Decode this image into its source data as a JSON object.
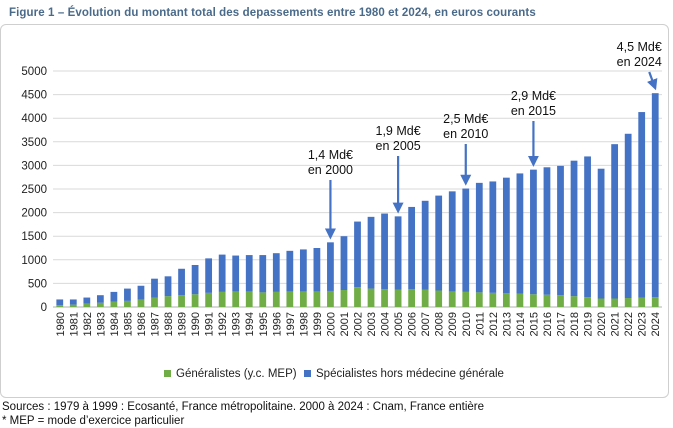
{
  "title": "Figure 1 – Évolution du montant total des depassements entre 1980 et 2024, en euros courants",
  "sources_line": "Sources : 1979 à 1999 : Ecosanté, France métropolitaine. 2000 à 2024 : Cnam, France entière",
  "note_line": "* MEP = mode d’exercice particulier",
  "chart_data": {
    "type": "bar",
    "stacked": true,
    "title": "Figure 1 – Évolution du montant total des depassements entre 1980 et 2024, en euros courants",
    "xlabel": "",
    "ylabel": "",
    "ylim": [
      0,
      5000
    ],
    "yticks": [
      0,
      500,
      1000,
      1500,
      2000,
      2500,
      3000,
      3500,
      4000,
      4500,
      5000
    ],
    "grid": true,
    "legend_position": "bottom",
    "categories": [
      "1980",
      "1981",
      "1982",
      "1983",
      "1984",
      "1985",
      "1986",
      "1987",
      "1988",
      "1989",
      "1990",
      "1991",
      "1992",
      "1993",
      "1994",
      "1995",
      "1996",
      "1997",
      "1998",
      "1999",
      "2000",
      "2001",
      "2002",
      "2003",
      "2004",
      "2005",
      "2006",
      "2007",
      "2008",
      "2009",
      "2010",
      "2011",
      "2012",
      "2013",
      "2014",
      "2015",
      "2016",
      "2017",
      "2018",
      "2019",
      "2020",
      "2021",
      "2022",
      "2023",
      "2024"
    ],
    "series": [
      {
        "name": "Généralistes (y.c. MEP)",
        "color": "#70ad47",
        "values": [
          40,
          50,
          70,
          90,
          110,
          130,
          160,
          200,
          230,
          250,
          270,
          300,
          320,
          330,
          330,
          310,
          320,
          330,
          330,
          330,
          340,
          360,
          420,
          390,
          380,
          370,
          380,
          370,
          350,
          330,
          320,
          310,
          300,
          290,
          280,
          270,
          260,
          250,
          230,
          210,
          180,
          180,
          190,
          200,
          210
        ]
      },
      {
        "name": "Spécialistes hors médecine générale",
        "color": "#4472c4",
        "values": [
          120,
          110,
          130,
          160,
          210,
          260,
          290,
          400,
          420,
          560,
          620,
          730,
          790,
          760,
          770,
          790,
          820,
          860,
          890,
          920,
          1030,
          1140,
          1390,
          1520,
          1600,
          1550,
          1740,
          1880,
          2010,
          2120,
          2190,
          2320,
          2360,
          2450,
          2550,
          2640,
          2700,
          2740,
          2870,
          2980,
          2750,
          3270,
          3480,
          3930,
          4320
        ]
      }
    ],
    "annotations": [
      {
        "line1": "1,4 Md€",
        "line2": "en 2000",
        "year": "2000",
        "value": 1400
      },
      {
        "line1": "1,9 Md€",
        "line2": "en 2005",
        "year": "2005",
        "value": 1900
      },
      {
        "line1": "2,5 Md€",
        "line2": "en 2010",
        "year": "2010",
        "value": 2500
      },
      {
        "line1": "2,9 Md€",
        "line2": "en 2015",
        "year": "2015",
        "value": 2900
      },
      {
        "line1": "4,5 Md€",
        "line2": "en 2024",
        "year": "2024",
        "value": 4500
      }
    ]
  }
}
